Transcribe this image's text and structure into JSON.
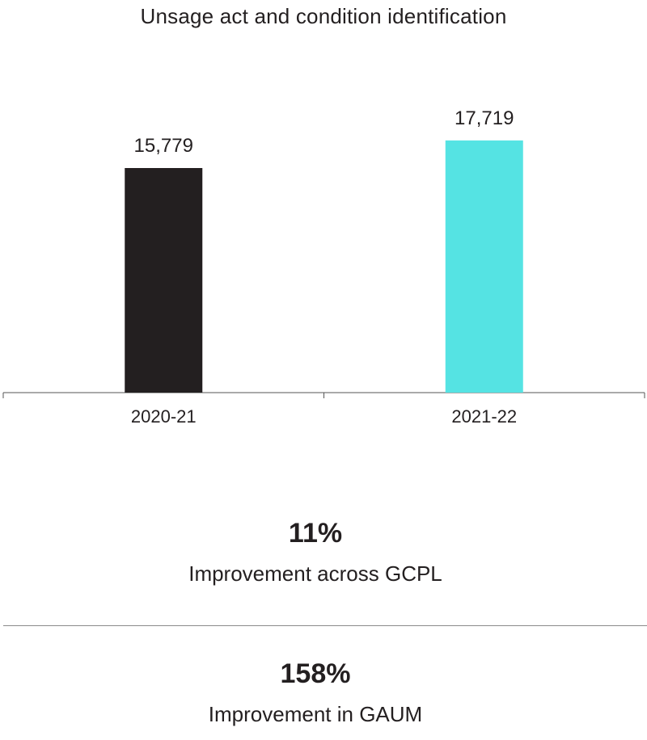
{
  "chart_data": {
    "type": "bar",
    "title": "Unsage act and condition identification",
    "categories": [
      "2020-21",
      "2021-22"
    ],
    "values": [
      15779,
      17719
    ],
    "value_labels": [
      "15,779",
      "17,719"
    ],
    "bar_colors": [
      "#231f20",
      "#55e3e3"
    ],
    "xlabel": "",
    "ylabel": "",
    "ylim": [
      0,
      20000
    ],
    "grid": false,
    "legend": "none"
  },
  "stats": [
    {
      "value": "11%",
      "description": "Improvement across GCPL"
    },
    {
      "value": "158%",
      "description": "Improvement in GAUM"
    }
  ],
  "colors": {
    "text": "#231f20",
    "axis": "#555555",
    "divider": "#8a8a8a"
  }
}
